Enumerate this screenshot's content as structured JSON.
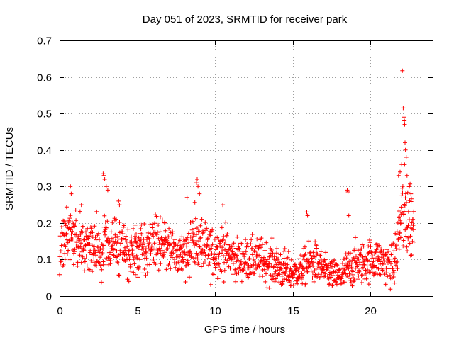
{
  "chart_data": {
    "type": "scatter",
    "title": "Day 051 of 2023, SRMTID for receiver park",
    "xlabel": "GPS time / hours",
    "ylabel": "SRMTID / TECUs",
    "xlim": [
      0,
      24
    ],
    "ylim": [
      0,
      0.7
    ],
    "x_ticks": [
      "0",
      "5",
      "10",
      "15",
      "20"
    ],
    "y_ticks": [
      "0",
      "0.1",
      "0.2",
      "0.3",
      "0.4",
      "0.5",
      "0.6",
      "0.7"
    ],
    "x_tick_values": [
      0,
      5,
      10,
      15,
      20
    ],
    "y_tick_values": [
      0,
      0.1,
      0.2,
      0.3,
      0.4,
      0.5,
      0.6,
      0.7
    ],
    "grid": true,
    "marker": "+",
    "color": "#ff0000",
    "sample_interval_hours": 0.0167,
    "envelope": {
      "hours": [
        0,
        0.5,
        1,
        1.5,
        2,
        2.5,
        3,
        3.5,
        4,
        4.5,
        5,
        5.5,
        6,
        6.5,
        7,
        7.5,
        8,
        8.5,
        9,
        9.5,
        10,
        10.5,
        11,
        11.5,
        12,
        12.5,
        13,
        13.5,
        14,
        14.5,
        15,
        15.5,
        16,
        16.5,
        17,
        17.5,
        18,
        18.5,
        19,
        19.5,
        20,
        20.5,
        21,
        21.5,
        22,
        22.5,
        22.8
      ],
      "center": [
        0.13,
        0.17,
        0.17,
        0.15,
        0.13,
        0.13,
        0.14,
        0.14,
        0.12,
        0.12,
        0.12,
        0.13,
        0.15,
        0.15,
        0.13,
        0.12,
        0.12,
        0.15,
        0.14,
        0.12,
        0.12,
        0.13,
        0.11,
        0.1,
        0.1,
        0.1,
        0.1,
        0.09,
        0.08,
        0.07,
        0.06,
        0.07,
        0.09,
        0.09,
        0.07,
        0.06,
        0.05,
        0.07,
        0.09,
        0.09,
        0.1,
        0.1,
        0.09,
        0.08,
        0.22,
        0.22,
        0.18
      ],
      "spread": [
        0.05,
        0.05,
        0.05,
        0.05,
        0.05,
        0.05,
        0.06,
        0.05,
        0.05,
        0.05,
        0.05,
        0.05,
        0.05,
        0.05,
        0.05,
        0.05,
        0.05,
        0.06,
        0.06,
        0.05,
        0.05,
        0.05,
        0.04,
        0.04,
        0.04,
        0.04,
        0.04,
        0.04,
        0.04,
        0.04,
        0.03,
        0.03,
        0.04,
        0.04,
        0.03,
        0.03,
        0.03,
        0.04,
        0.04,
        0.04,
        0.04,
        0.04,
        0.04,
        0.04,
        0.09,
        0.09,
        0.06
      ]
    },
    "spikes": [
      {
        "x": 0.7,
        "y": 0.3
      },
      {
        "x": 0.75,
        "y": 0.28
      },
      {
        "x": 1.4,
        "y": 0.25
      },
      {
        "x": 2.8,
        "y": 0.335
      },
      {
        "x": 2.85,
        "y": 0.33
      },
      {
        "x": 2.9,
        "y": 0.32
      },
      {
        "x": 3.0,
        "y": 0.3
      },
      {
        "x": 3.1,
        "y": 0.29
      },
      {
        "x": 3.8,
        "y": 0.26
      },
      {
        "x": 3.85,
        "y": 0.25
      },
      {
        "x": 8.2,
        "y": 0.27
      },
      {
        "x": 8.8,
        "y": 0.31
      },
      {
        "x": 8.85,
        "y": 0.32
      },
      {
        "x": 8.9,
        "y": 0.3
      },
      {
        "x": 9.0,
        "y": 0.28
      },
      {
        "x": 10.5,
        "y": 0.25
      },
      {
        "x": 15.9,
        "y": 0.23
      },
      {
        "x": 15.95,
        "y": 0.22
      },
      {
        "x": 18.5,
        "y": 0.29
      },
      {
        "x": 18.55,
        "y": 0.285
      },
      {
        "x": 18.6,
        "y": 0.22
      },
      {
        "x": 21.8,
        "y": 0.33
      },
      {
        "x": 21.9,
        "y": 0.34
      },
      {
        "x": 22.0,
        "y": 0.36
      },
      {
        "x": 22.05,
        "y": 0.617
      },
      {
        "x": 22.1,
        "y": 0.515
      },
      {
        "x": 22.15,
        "y": 0.49
      },
      {
        "x": 22.18,
        "y": 0.48
      },
      {
        "x": 22.2,
        "y": 0.47
      },
      {
        "x": 22.22,
        "y": 0.42
      },
      {
        "x": 22.25,
        "y": 0.4
      },
      {
        "x": 22.3,
        "y": 0.38
      },
      {
        "x": 22.35,
        "y": 0.33
      },
      {
        "x": 22.5,
        "y": 0.3
      },
      {
        "x": 22.6,
        "y": 0.28
      }
    ]
  }
}
